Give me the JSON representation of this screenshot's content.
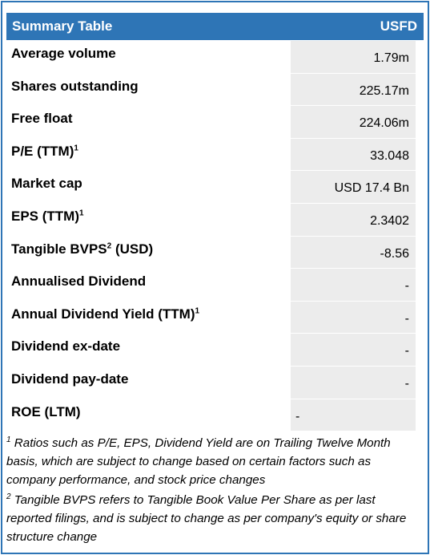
{
  "header": {
    "title": "Summary Table",
    "ticker": "USFD"
  },
  "rows": [
    {
      "label": "Average volume",
      "sup": "",
      "suffix": "",
      "value": "1.79m"
    },
    {
      "label": "Shares outstanding",
      "sup": "",
      "suffix": "",
      "value": "225.17m"
    },
    {
      "label": "Free float",
      "sup": "",
      "suffix": "",
      "value": "224.06m"
    },
    {
      "label": "P/E (TTM)",
      "sup": "1",
      "suffix": "",
      "value": "33.048"
    },
    {
      "label": "Market cap",
      "sup": "",
      "suffix": "",
      "value": "USD 17.4 Bn"
    },
    {
      "label": "EPS (TTM)",
      "sup": "1",
      "suffix": "",
      "value": "2.3402"
    },
    {
      "label": "Tangible BVPS",
      "sup": "2",
      "suffix": " (USD)",
      "value": "-8.56"
    },
    {
      "label": "Annualised Dividend",
      "sup": "",
      "suffix": "",
      "value": "-"
    },
    {
      "label": "Annual Dividend Yield (TTM)",
      "sup": "1",
      "suffix": "",
      "value": "-"
    },
    {
      "label": "Dividend ex-date",
      "sup": "",
      "suffix": "",
      "value": "-"
    },
    {
      "label": "Dividend pay-date",
      "sup": "",
      "suffix": "",
      "value": "-"
    },
    {
      "label": "ROE (LTM)",
      "sup": "",
      "suffix": "",
      "value": "-"
    }
  ],
  "footnotes": [
    {
      "marker": "1",
      "text": " Ratios such as P/E, EPS, Dividend Yield are on Trailing Twelve Month basis, which are subject to change based on certain factors such as company performance, and stock price changes"
    },
    {
      "marker": "2",
      "text": " Tangible BVPS refers to Tangible Book Value Per Share as per last reported filings, and is subject to change as per company's equity or share structure change"
    }
  ],
  "colors": {
    "header_bg": "#2e75b6",
    "value_bg": "#ececec"
  }
}
